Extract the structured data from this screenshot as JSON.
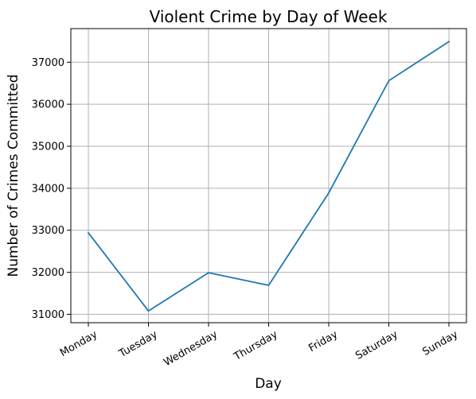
{
  "chart_data": {
    "type": "line",
    "title": "Violent Crime by Day of Week",
    "xlabel": "Day",
    "ylabel": "Number of Crimes Committed",
    "categories": [
      "Monday",
      "Tuesday",
      "Wednesday",
      "Thursday",
      "Friday",
      "Saturday",
      "Sunday"
    ],
    "series": [
      {
        "values": [
          32940,
          31080,
          31990,
          31690,
          33890,
          36560,
          37490
        ]
      }
    ],
    "ylim": [
      30800,
      37800
    ],
    "yticks": [
      31000,
      32000,
      33000,
      34000,
      35000,
      36000,
      37000
    ],
    "grid": true,
    "line_color": "#1f77b4"
  }
}
